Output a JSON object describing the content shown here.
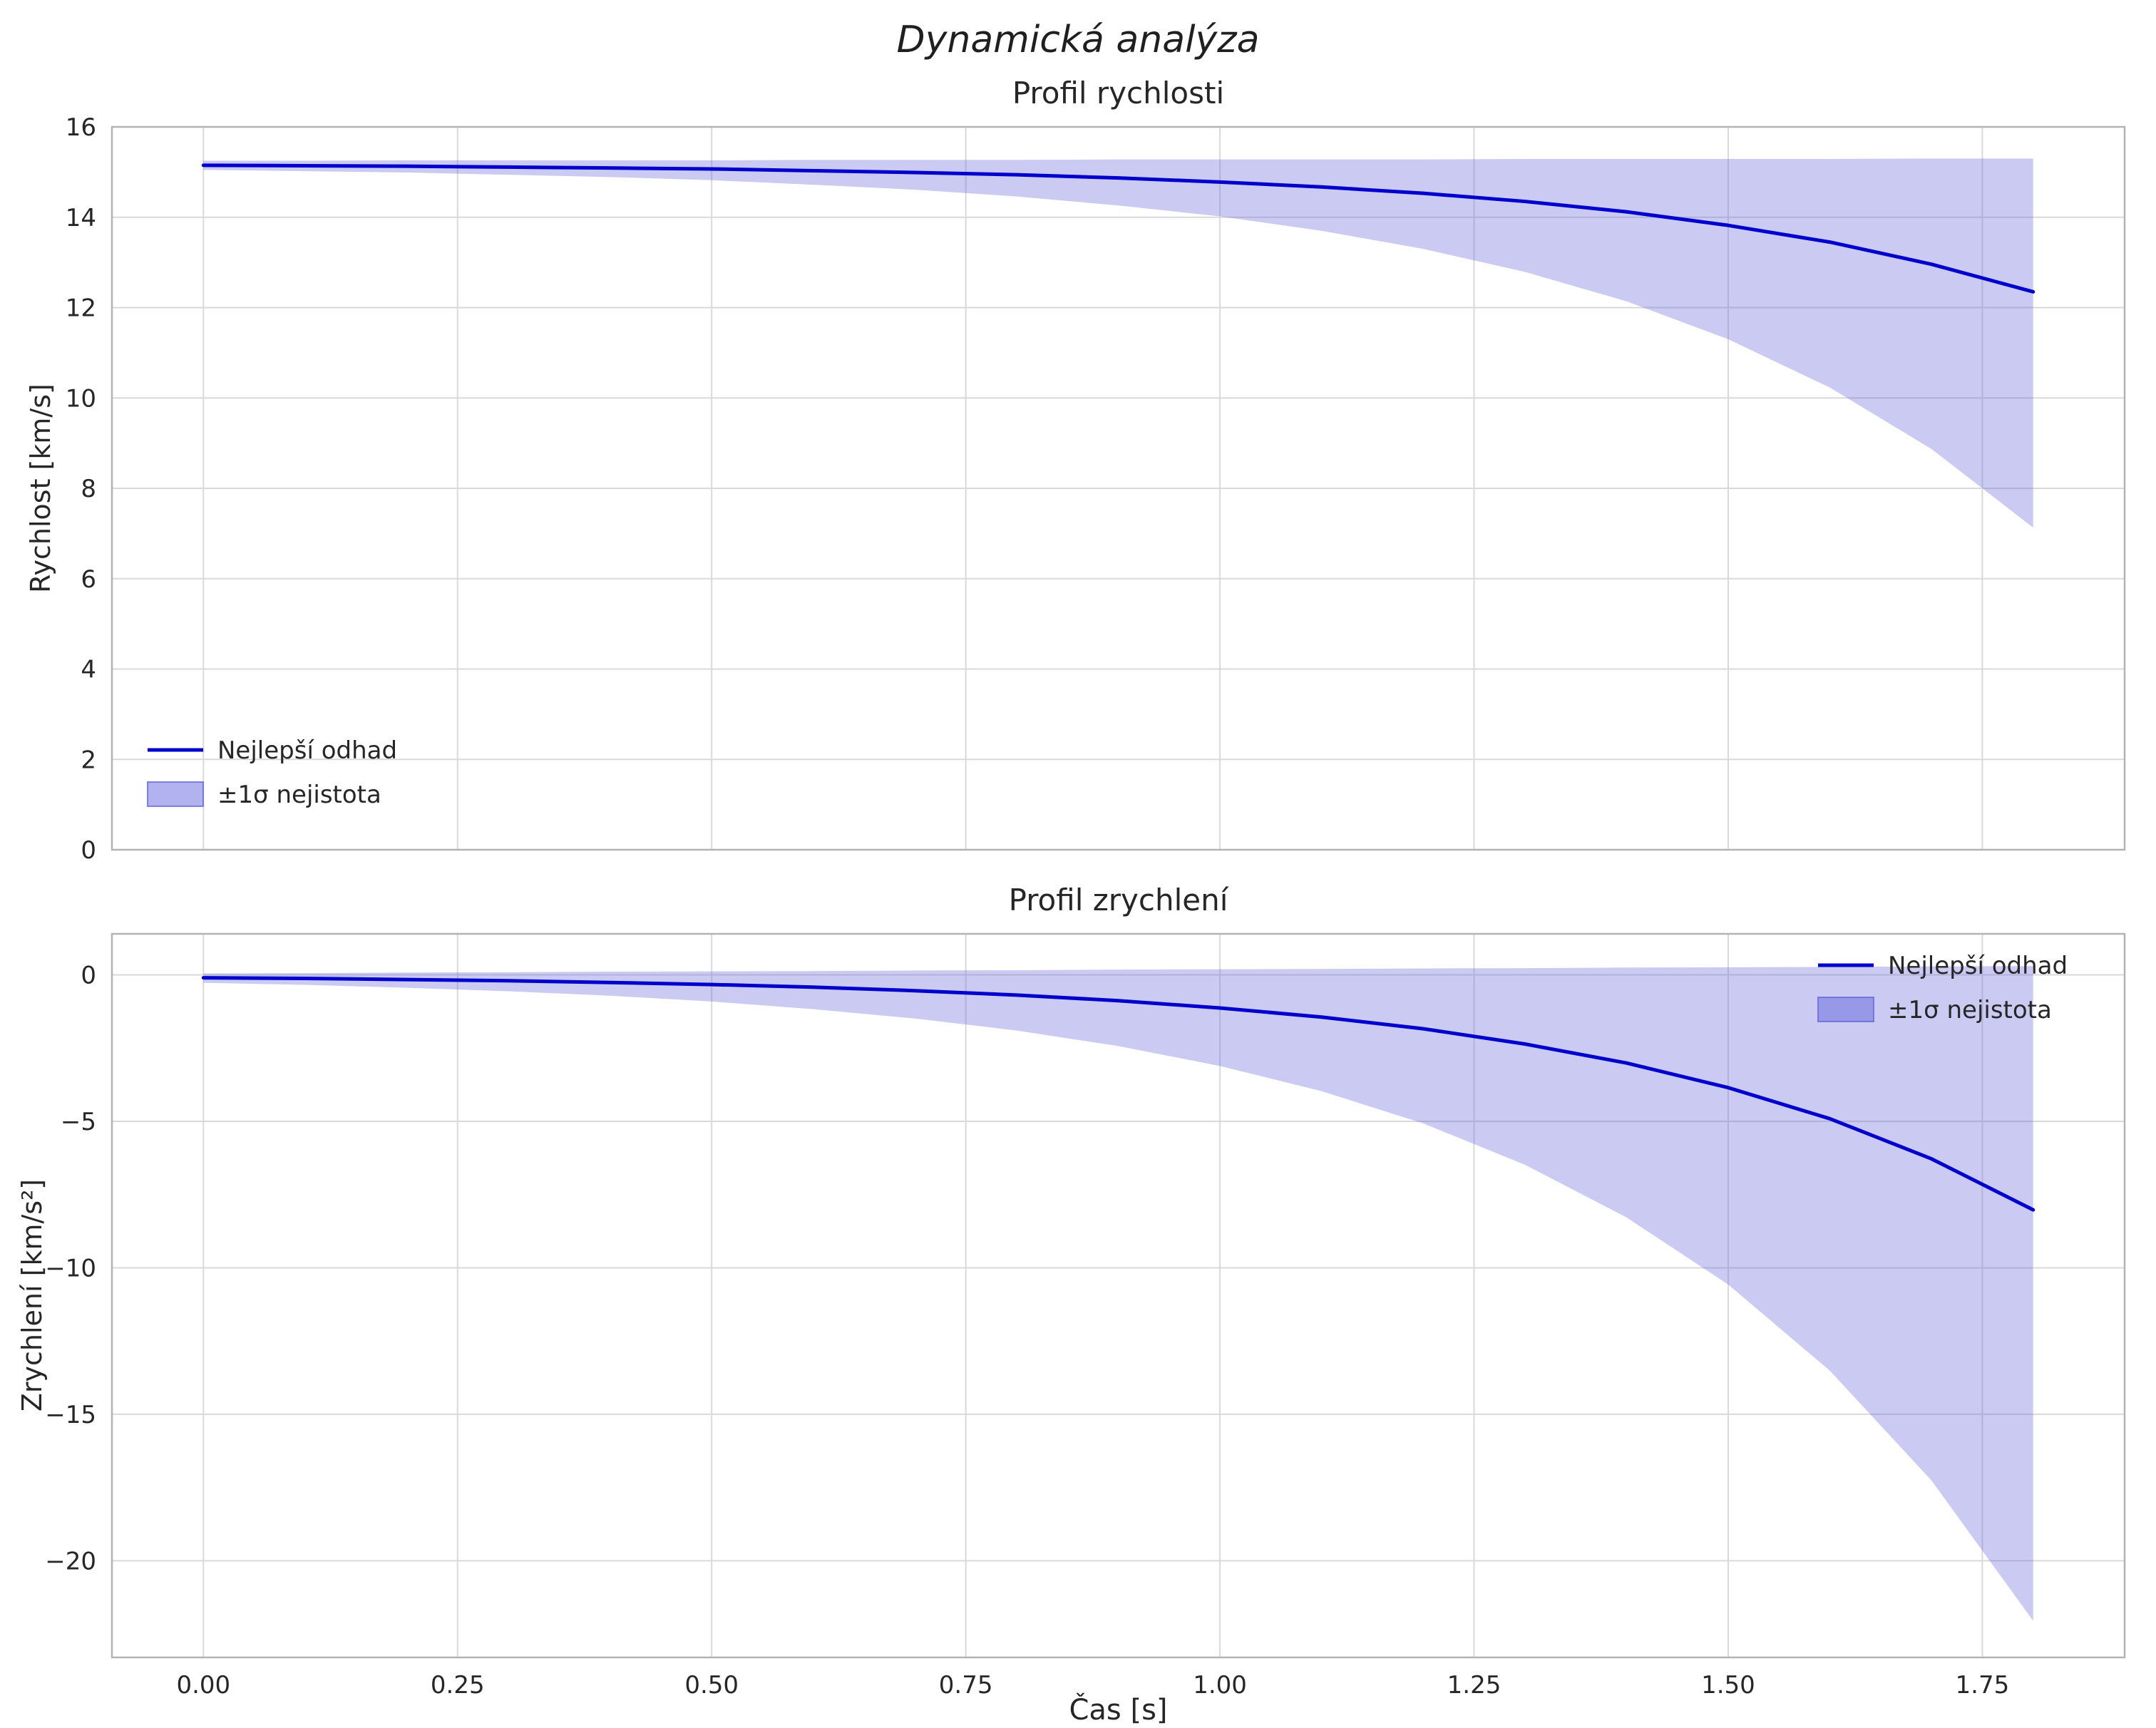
{
  "figure": {
    "title": "Dynamická analýza",
    "background": "#ffffff",
    "line_color": "#0000cc",
    "band_color": "#6666dd",
    "band_opacity": 0.35,
    "grid_color": "#d9d9d9",
    "spine_color": "#b3b3b3",
    "text_color": "#262626"
  },
  "chart_data": [
    {
      "type": "line",
      "name": "velocity-profile",
      "title": "Profil rychlosti",
      "xlabel": "",
      "ylabel": "Rychlost [km/s]",
      "xlim": [
        -0.09,
        1.89
      ],
      "ylim": [
        0,
        16
      ],
      "grid": true,
      "show_xtick_labels": false,
      "xticks": {
        "values": [
          0,
          0.25,
          0.5,
          0.75,
          1.0,
          1.25,
          1.5,
          1.75
        ],
        "labels": [
          "0.00",
          "0.25",
          "0.50",
          "0.75",
          "1.00",
          "1.25",
          "1.50",
          "1.75"
        ]
      },
      "yticks": {
        "values": [
          0,
          2,
          4,
          6,
          8,
          10,
          12,
          14,
          16
        ],
        "labels": [
          "0",
          "2",
          "4",
          "6",
          "8",
          "10",
          "12",
          "14",
          "16"
        ]
      },
      "x": [
        0,
        0.1,
        0.2,
        0.3,
        0.4,
        0.5,
        0.6,
        0.7,
        0.8,
        0.9,
        1.0,
        1.1,
        1.2,
        1.3,
        1.4,
        1.5,
        1.6,
        1.7,
        1.8
      ],
      "series": [
        {
          "name": "Nejlepší odhad",
          "kind": "line",
          "values": [
            15.15,
            15.14,
            15.13,
            15.11,
            15.09,
            15.07,
            15.03,
            14.99,
            14.94,
            14.87,
            14.78,
            14.67,
            14.53,
            14.35,
            14.12,
            13.82,
            13.45,
            12.96,
            12.35
          ]
        },
        {
          "name": "±1σ nejistota",
          "kind": "band",
          "upper": [
            15.25,
            15.25,
            15.26,
            15.26,
            15.26,
            15.26,
            15.27,
            15.27,
            15.27,
            15.28,
            15.28,
            15.28,
            15.28,
            15.29,
            15.29,
            15.29,
            15.29,
            15.3,
            15.3
          ],
          "lower": [
            15.05,
            15.02,
            14.99,
            14.94,
            14.89,
            14.82,
            14.72,
            14.61,
            14.46,
            14.26,
            14.02,
            13.7,
            13.3,
            12.79,
            12.14,
            11.3,
            10.23,
            8.87,
            7.13
          ]
        }
      ],
      "legend": {
        "position": "lower-left",
        "entries": [
          "Nejlepší odhad",
          "±1σ nejistota"
        ]
      }
    },
    {
      "type": "line",
      "name": "acceleration-profile",
      "title": "Profil zrychlení",
      "xlabel": "Čas [s]",
      "ylabel": "Zrychlení [km/s²]",
      "xlim": [
        -0.09,
        1.89
      ],
      "ylim": [
        -23.3,
        1.4
      ],
      "grid": true,
      "show_xtick_labels": true,
      "xticks": {
        "values": [
          0,
          0.25,
          0.5,
          0.75,
          1.0,
          1.25,
          1.5,
          1.75
        ],
        "labels": [
          "0.00",
          "0.25",
          "0.50",
          "0.75",
          "1.00",
          "1.25",
          "1.50",
          "1.75"
        ]
      },
      "yticks": {
        "values": [
          0,
          -5,
          -10,
          -15,
          -20
        ],
        "labels": [
          "0",
          "−5",
          "−10",
          "−15",
          "−20"
        ]
      },
      "x": [
        0,
        0.1,
        0.2,
        0.3,
        0.4,
        0.5,
        0.6,
        0.7,
        0.8,
        0.9,
        1.0,
        1.1,
        1.2,
        1.3,
        1.4,
        1.5,
        1.6,
        1.7,
        1.8
      ],
      "series": [
        {
          "name": "Nejlepší odhad",
          "kind": "line",
          "values": [
            -0.1,
            -0.12,
            -0.16,
            -0.2,
            -0.26,
            -0.33,
            -0.42,
            -0.54,
            -0.69,
            -0.88,
            -1.13,
            -1.44,
            -1.84,
            -2.36,
            -3.01,
            -3.85,
            -4.91,
            -6.28,
            -8.02
          ]
        },
        {
          "name": "±1σ nejistota",
          "kind": "band",
          "upper": [
            0.05,
            0.06,
            0.08,
            0.09,
            0.11,
            0.12,
            0.13,
            0.15,
            0.16,
            0.18,
            0.19,
            0.2,
            0.22,
            0.23,
            0.25,
            0.26,
            0.27,
            0.29,
            0.3
          ],
          "lower": [
            -0.27,
            -0.34,
            -0.44,
            -0.56,
            -0.71,
            -0.91,
            -1.17,
            -1.49,
            -1.9,
            -2.43,
            -3.11,
            -3.97,
            -5.07,
            -6.48,
            -8.28,
            -10.57,
            -13.51,
            -17.26,
            -22.05
          ]
        }
      ],
      "legend": {
        "position": "upper-right",
        "entries": [
          "Nejlepší odhad",
          "±1σ nejistota"
        ]
      }
    }
  ]
}
